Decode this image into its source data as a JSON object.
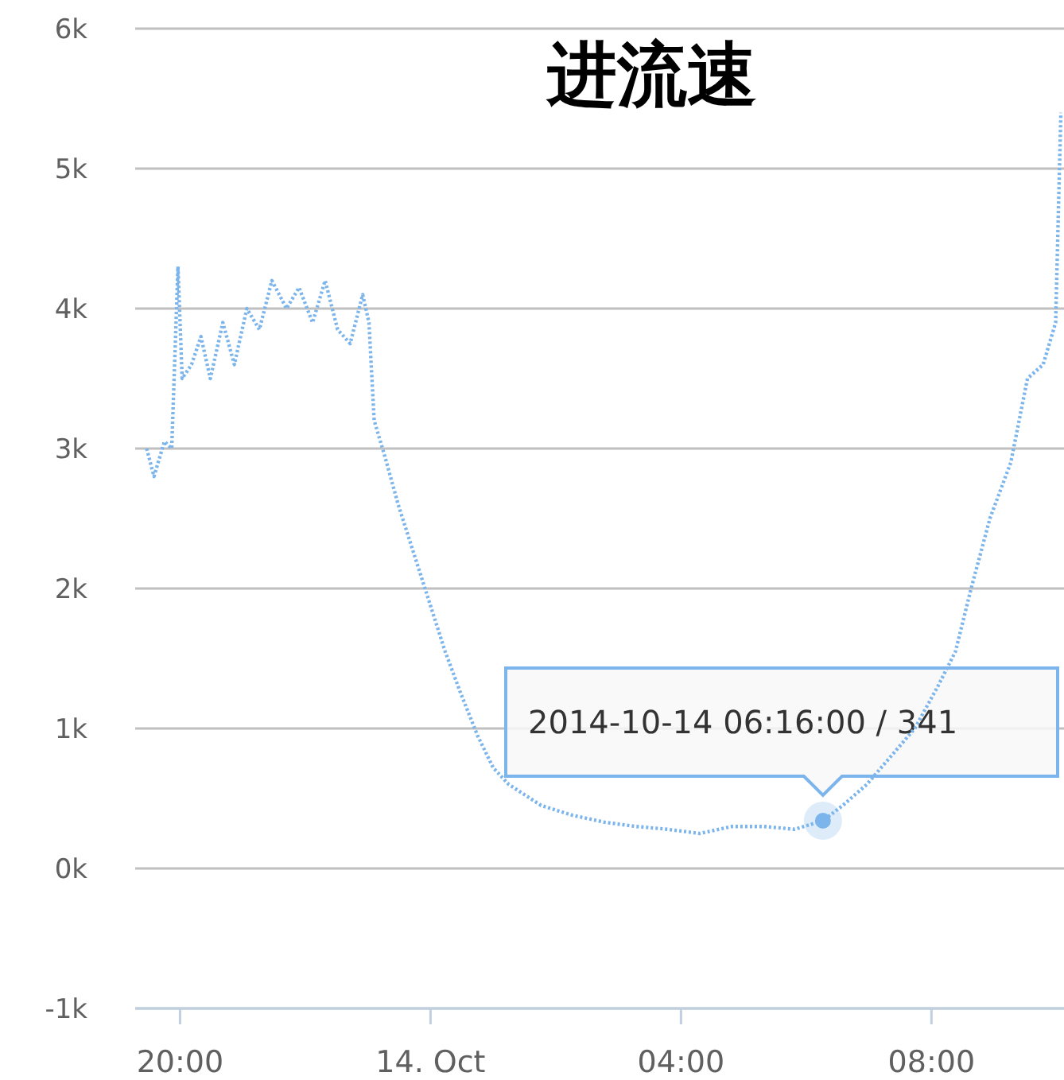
{
  "chart_data": {
    "type": "line",
    "title": "进流速",
    "x": [
      "2014-10-13T19:28",
      "2014-10-13T19:35",
      "2014-10-13T19:45",
      "2014-10-13T19:52",
      "2014-10-13T19:58",
      "2014-10-13T20:02",
      "2014-10-13T20:11",
      "2014-10-13T20:20",
      "2014-10-13T20:29",
      "2014-10-13T20:41",
      "2014-10-13T20:52",
      "2014-10-13T21:04",
      "2014-10-13T21:16",
      "2014-10-13T21:28",
      "2014-10-13T21:42",
      "2014-10-13T21:54",
      "2014-10-13T22:07",
      "2014-10-13T22:19",
      "2014-10-13T22:31",
      "2014-10-13T22:43",
      "2014-10-13T22:55",
      "2014-10-13T23:01",
      "2014-10-13T23:06",
      "2014-10-13T23:16",
      "2014-10-13T23:29",
      "2014-10-13T23:44",
      "2014-10-13T23:59",
      "2014-10-14T00:14",
      "2014-10-14T00:29",
      "2014-10-14T00:45",
      "2014-10-14T01:00",
      "2014-10-14T01:15",
      "2014-10-14T01:46",
      "2014-10-14T02:16",
      "2014-10-14T02:47",
      "2014-10-14T03:17",
      "2014-10-14T03:47",
      "2014-10-14T04:18",
      "2014-10-14T04:49",
      "2014-10-14T05:19",
      "2014-10-14T05:49",
      "2014-10-14T06:16",
      "2014-10-14T06:35",
      "2014-10-14T06:58",
      "2014-10-14T07:21",
      "2014-10-14T07:44",
      "2014-10-14T08:06",
      "2014-10-14T08:23",
      "2014-10-14T08:38",
      "2014-10-14T08:56",
      "2014-10-14T09:16",
      "2014-10-14T09:32",
      "2014-10-14T09:47",
      "2014-10-14T09:59",
      "2014-10-14T10:04"
    ],
    "series": [
      {
        "color": "#7cb5ec",
        "values": [
          3000,
          2800,
          3050,
          3000,
          4300,
          3500,
          3600,
          3800,
          3500,
          3900,
          3600,
          4000,
          3850,
          4200,
          4000,
          4150,
          3900,
          4200,
          3850,
          3750,
          4100,
          3900,
          3200,
          2950,
          2600,
          2250,
          1900,
          1550,
          1250,
          950,
          720,
          600,
          450,
          380,
          330,
          300,
          280,
          250,
          300,
          300,
          280,
          341,
          450,
          600,
          800,
          1000,
          1300,
          1550,
          2000,
          2500,
          2900,
          3500,
          3600,
          3900,
          5400
        ]
      }
    ],
    "xlim": [
      "2014-10-13T19:17",
      "2014-10-14T10:07"
    ],
    "xticks": [
      {
        "value": "2014-10-13T20:00",
        "label": "20:00"
      },
      {
        "value": "2014-10-14T00:00",
        "label": "14. Oct"
      },
      {
        "value": "2014-10-14T04:00",
        "label": "04:00"
      },
      {
        "value": "2014-10-14T08:00",
        "label": "08:00"
      }
    ],
    "ylim": [
      -1000,
      6000
    ],
    "yticks": [
      {
        "value": -1000,
        "label": "-1k"
      },
      {
        "value": 0,
        "label": "0k"
      },
      {
        "value": 1000,
        "label": "1k"
      },
      {
        "value": 2000,
        "label": "2k"
      },
      {
        "value": 3000,
        "label": "3k"
      },
      {
        "value": 4000,
        "label": "4k"
      },
      {
        "value": 5000,
        "label": "5k"
      },
      {
        "value": 6000,
        "label": "6k"
      }
    ],
    "grid": "y",
    "line_style": "dotted",
    "marker": "none",
    "annotations": [
      {
        "text": "2014-10-14 06:16:00 / 341",
        "x": "2014-10-14T06:16",
        "y": 341
      }
    ]
  }
}
